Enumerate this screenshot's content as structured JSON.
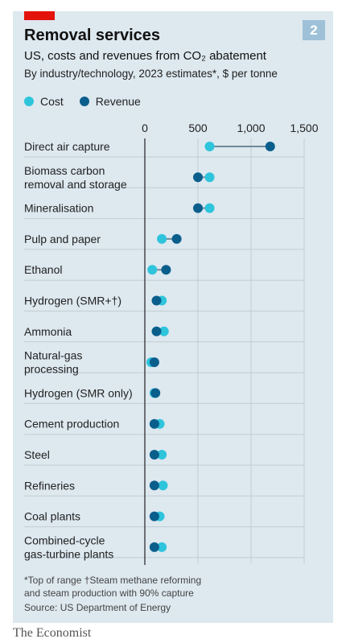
{
  "header": {
    "title": "Removal services",
    "badge": "2",
    "subtitle": "US, costs and revenues from CO₂ abatement",
    "subtitle2": "By industry/technology, 2023 estimates*, $ per tonne"
  },
  "colors": {
    "cost": "#2ec4dc",
    "revenue": "#0a5e8c",
    "accent": "#e3120b",
    "panel": "#dde8ef"
  },
  "chart_data": {
    "type": "dot",
    "xlim": [
      0,
      1500
    ],
    "xticks": [
      0,
      500,
      1000,
      1500
    ],
    "xtick_labels": [
      "0",
      "500",
      "1,000",
      "1,500"
    ],
    "legend": [
      "Cost",
      "Revenue"
    ],
    "legend_position": "top-left",
    "grid": true,
    "categories": [
      [
        "Direct air capture"
      ],
      [
        "Biomass carbon",
        "removal and storage"
      ],
      [
        "Mineralisation"
      ],
      [
        "Pulp and paper"
      ],
      [
        "Ethanol"
      ],
      [
        "Hydrogen (SMR+†)"
      ],
      [
        "Ammonia"
      ],
      [
        "Natural-gas",
        "processing"
      ],
      [
        "Hydrogen (SMR only)"
      ],
      [
        "Cement production"
      ],
      [
        "Steel"
      ],
      [
        "Refineries"
      ],
      [
        "Coal plants"
      ],
      [
        "Combined-cycle",
        "gas-turbine plants"
      ]
    ],
    "series": [
      {
        "name": "Cost",
        "values": [
          610,
          610,
          610,
          160,
          70,
          160,
          180,
          60,
          90,
          140,
          160,
          170,
          140,
          160
        ]
      },
      {
        "name": "Revenue",
        "values": [
          1180,
          500,
          500,
          300,
          200,
          110,
          110,
          90,
          100,
          90,
          90,
          90,
          90,
          90
        ]
      }
    ]
  },
  "footnotes": {
    "line1": "*Top of range   †Steam methane reforming",
    "line2": "and steam production with 90% capture",
    "source": "Source: US Department of Energy"
  },
  "brand": "The Economist"
}
